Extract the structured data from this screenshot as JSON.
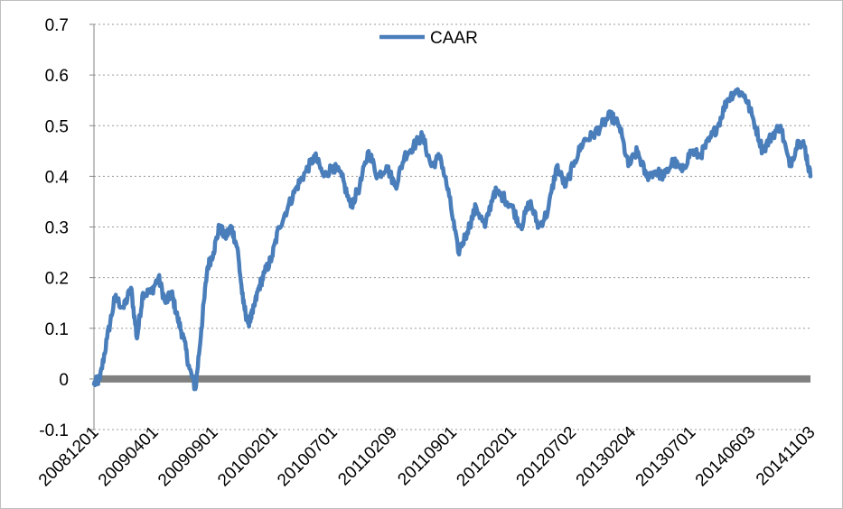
{
  "chart_data": {
    "type": "line",
    "title": "",
    "xlabel": "",
    "ylabel": "",
    "ylim": [
      -0.1,
      0.7
    ],
    "y_ticks": [
      -0.1,
      0,
      0.1,
      0.2,
      0.3,
      0.4,
      0.5,
      0.6,
      0.7
    ],
    "y_tick_labels": [
      "-0.1",
      "0",
      "0.1",
      "0.2",
      "0.3",
      "0.4",
      "0.5",
      "0.6",
      "0.7"
    ],
    "x_tick_labels": [
      "20081201",
      "20090401",
      "20090901",
      "20100201",
      "20100701",
      "20110209",
      "20110901",
      "20120201",
      "20120702",
      "20130204",
      "20130701",
      "20140603",
      "20141103"
    ],
    "grid": "horizontal dotted",
    "legend": "top-center",
    "line_color": "#4a7ebb",
    "zero_bar_color": "#808080",
    "series": [
      {
        "name": "CAAR",
        "x": [
          0,
          0.1,
          0.22,
          0.35,
          0.5,
          0.62,
          0.72,
          0.82,
          0.95,
          1.08,
          1.2,
          1.3,
          1.4,
          1.5,
          1.6,
          1.7,
          1.8,
          1.9,
          2.0,
          2.1,
          2.2,
          2.3,
          2.4,
          2.5,
          2.58,
          2.66,
          2.76,
          2.86,
          2.98,
          3.1,
          3.25,
          3.4,
          3.55,
          3.7,
          3.85,
          4.0,
          4.15,
          4.3,
          4.45,
          4.6,
          4.75,
          4.9,
          5.05,
          5.2,
          5.35,
          5.5,
          5.65,
          5.8,
          5.95,
          6.1,
          6.25,
          6.4,
          6.55,
          6.7,
          6.85,
          7.0,
          7.15,
          7.3,
          7.45,
          7.6,
          7.75,
          7.9,
          8.05,
          8.2,
          8.35,
          8.5,
          8.65,
          8.8,
          8.95,
          9.1,
          9.25,
          9.4,
          9.55,
          9.7,
          9.85,
          10.0,
          10.15,
          10.3,
          10.45,
          10.6,
          10.75,
          10.9,
          11.05,
          11.2,
          11.35,
          11.5,
          11.65,
          11.8,
          11.9,
          12.0
        ],
        "values": [
          -0.01,
          0.0,
          0.08,
          0.16,
          0.14,
          0.18,
          0.08,
          0.17,
          0.17,
          0.2,
          0.15,
          0.17,
          0.12,
          0.08,
          0.02,
          -0.02,
          0.1,
          0.22,
          0.25,
          0.3,
          0.28,
          0.3,
          0.26,
          0.15,
          0.11,
          0.13,
          0.18,
          0.21,
          0.24,
          0.3,
          0.34,
          0.38,
          0.41,
          0.44,
          0.4,
          0.42,
          0.4,
          0.34,
          0.38,
          0.45,
          0.4,
          0.42,
          0.38,
          0.44,
          0.46,
          0.48,
          0.42,
          0.44,
          0.36,
          0.25,
          0.29,
          0.34,
          0.3,
          0.37,
          0.36,
          0.34,
          0.3,
          0.35,
          0.3,
          0.33,
          0.42,
          0.38,
          0.43,
          0.47,
          0.48,
          0.5,
          0.52,
          0.5,
          0.42,
          0.45,
          0.4,
          0.41,
          0.4,
          0.43,
          0.41,
          0.45,
          0.44,
          0.47,
          0.5,
          0.55,
          0.57,
          0.56,
          0.51,
          0.45,
          0.48,
          0.5,
          0.42,
          0.47,
          0.46,
          0.4
        ]
      }
    ]
  }
}
